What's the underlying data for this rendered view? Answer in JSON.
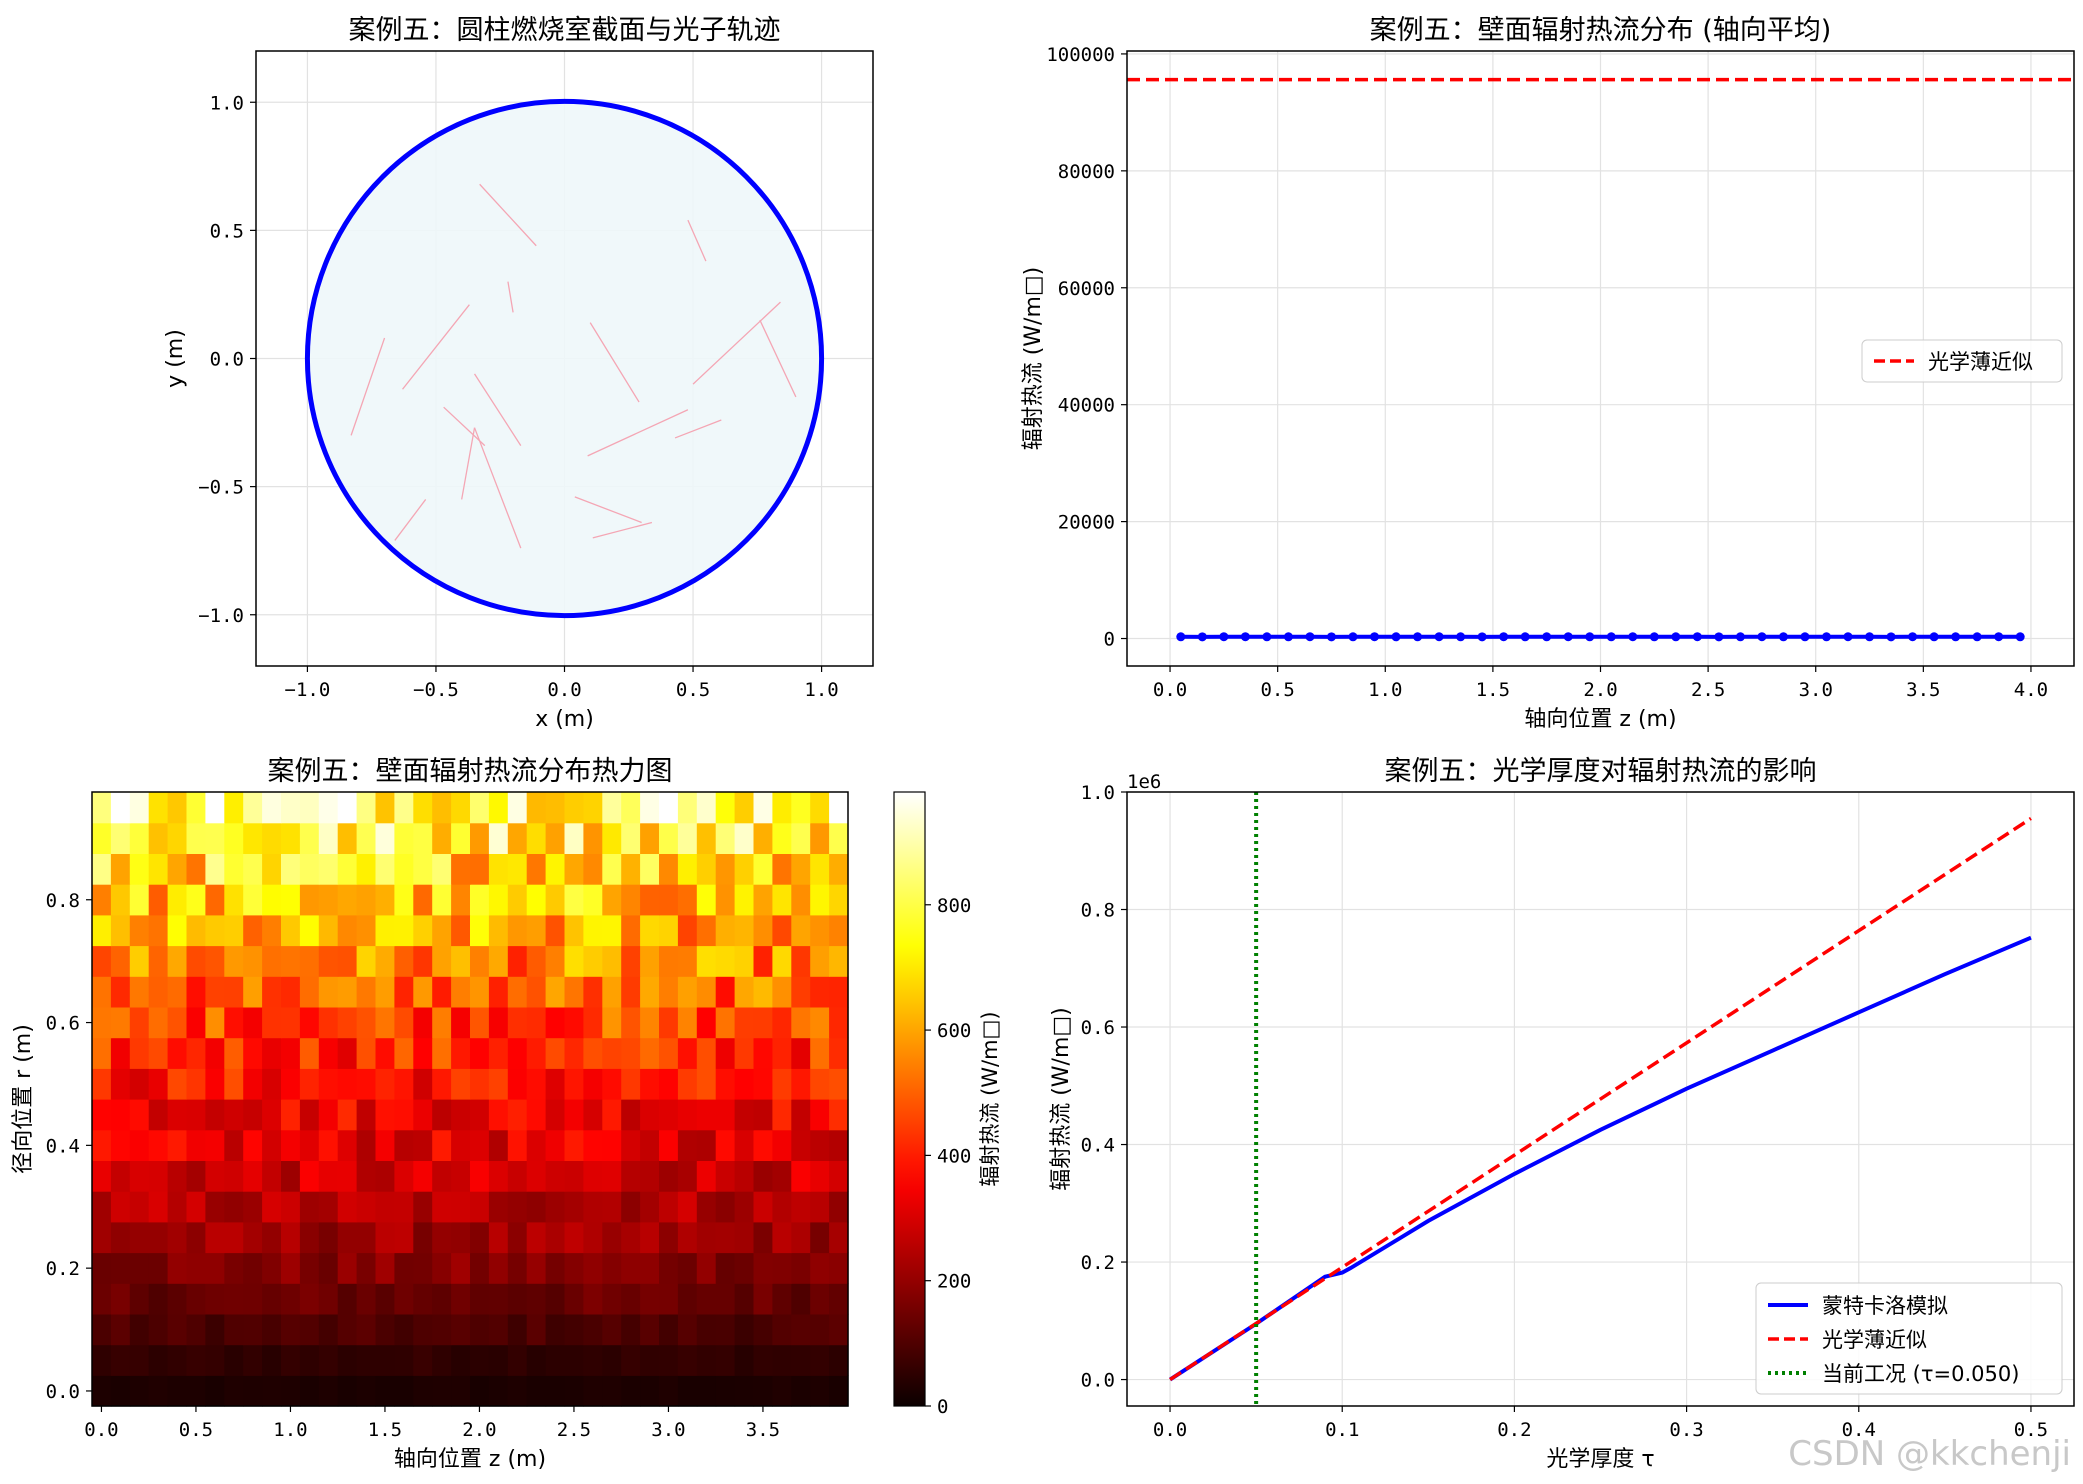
{
  "watermark": "CSDN @kkchenji",
  "chart_data": [
    {
      "type": "scatter",
      "panel": "top-left",
      "title": "案例五：圆柱燃烧室截面与光子轨迹",
      "xlabel": "x (m)",
      "ylabel": "y (m)",
      "xlim": [
        -1.2,
        1.2
      ],
      "ylim": [
        -1.2,
        1.2
      ],
      "xticks": [
        -1.0,
        -0.5,
        0.0,
        0.5,
        1.0
      ],
      "xtick_labels": [
        "−1.0",
        "−0.5",
        "0.0",
        "0.5",
        "1.0"
      ],
      "yticks": [
        -1.0,
        -0.5,
        0.0,
        0.5,
        1.0
      ],
      "ytick_labels": [
        "−1.0",
        "−0.5",
        "0.0",
        "0.5",
        "1.0"
      ],
      "grid": true,
      "circle": {
        "cx": 0,
        "cy": 0,
        "r": 1.0,
        "stroke": "#0000ff",
        "fill": "#eef7fa"
      },
      "trajectory_color": "#f4a6b4",
      "trajectories": [
        [
          [
            -0.33,
            0.68
          ],
          [
            -0.11,
            0.44
          ]
        ],
        [
          [
            0.48,
            0.54
          ],
          [
            0.55,
            0.38
          ]
        ],
        [
          [
            -0.22,
            0.3
          ],
          [
            -0.2,
            0.18
          ]
        ],
        [
          [
            -0.37,
            0.21
          ],
          [
            -0.63,
            -0.12
          ]
        ],
        [
          [
            -0.7,
            0.08
          ],
          [
            -0.83,
            -0.3
          ]
        ],
        [
          [
            0.1,
            0.14
          ],
          [
            0.29,
            -0.17
          ]
        ],
        [
          [
            0.84,
            0.22
          ],
          [
            0.5,
            -0.1
          ]
        ],
        [
          [
            0.76,
            0.15
          ],
          [
            0.9,
            -0.15
          ]
        ],
        [
          [
            -0.35,
            -0.06
          ],
          [
            -0.17,
            -0.34
          ]
        ],
        [
          [
            -0.47,
            -0.19
          ],
          [
            -0.31,
            -0.34
          ]
        ],
        [
          [
            0.48,
            -0.2
          ],
          [
            0.09,
            -0.38
          ]
        ],
        [
          [
            0.61,
            -0.24
          ],
          [
            0.43,
            -0.31
          ]
        ],
        [
          [
            -0.35,
            -0.27
          ],
          [
            -0.4,
            -0.55
          ]
        ],
        [
          [
            -0.35,
            -0.27
          ],
          [
            -0.17,
            -0.74
          ]
        ],
        [
          [
            0.04,
            -0.54
          ],
          [
            0.3,
            -0.64
          ]
        ],
        [
          [
            0.34,
            -0.64
          ],
          [
            0.11,
            -0.7
          ]
        ],
        [
          [
            -0.54,
            -0.55
          ],
          [
            -0.66,
            -0.71
          ]
        ]
      ]
    },
    {
      "type": "line",
      "panel": "top-right",
      "title": "案例五：壁面辐射热流分布 (轴向平均)",
      "xlabel": "轴向位置 z (m)",
      "ylabel": "辐射热流 (W/m□)",
      "xlim": [
        -0.2,
        4.2
      ],
      "ylim": [
        -4700,
        100500
      ],
      "xticks": [
        0.0,
        0.5,
        1.0,
        1.5,
        2.0,
        2.5,
        3.0,
        3.5,
        4.0
      ],
      "xtick_labels": [
        "0.0",
        "0.5",
        "1.0",
        "1.5",
        "2.0",
        "2.5",
        "3.0",
        "3.5",
        "4.0"
      ],
      "yticks": [
        0,
        20000,
        40000,
        60000,
        80000,
        100000
      ],
      "ytick_labels": [
        "0",
        "20000",
        "40000",
        "60000",
        "80000",
        "100000"
      ],
      "grid": true,
      "legend_position": "right",
      "series": [
        {
          "color": "#0000ff",
          "style": "solid-markers",
          "x": [
            0.05,
            0.15,
            0.25,
            0.35,
            0.45,
            0.55,
            0.65,
            0.75,
            0.85,
            0.95,
            1.05,
            1.15,
            1.25,
            1.35,
            1.45,
            1.55,
            1.65,
            1.75,
            1.85,
            1.95,
            2.05,
            2.15,
            2.25,
            2.35,
            2.45,
            2.55,
            2.65,
            2.75,
            2.85,
            2.95,
            3.05,
            3.15,
            3.25,
            3.35,
            3.45,
            3.55,
            3.65,
            3.75,
            3.85,
            3.95
          ],
          "values": [
            300,
            290,
            310,
            305,
            295,
            300,
            310,
            290,
            300,
            305,
            295,
            300,
            310,
            300,
            290,
            305,
            300,
            295,
            310,
            300,
            300,
            305,
            295,
            300,
            310,
            290,
            300,
            305,
            300,
            295,
            300,
            310,
            300,
            290,
            305,
            300,
            300,
            295,
            305,
            300
          ]
        },
        {
          "name": "光学薄近似",
          "color": "#ff0000",
          "style": "dashed",
          "y": 95600
        }
      ]
    },
    {
      "type": "heatmap",
      "panel": "bottom-left",
      "title": "案例五：壁面辐射热流分布热力图",
      "xlabel": "轴向位置 z (m)",
      "ylabel": "径向位置 r (m)",
      "colorbar_label": "辐射热流 (W/m□)",
      "colormap": "hot",
      "x_extent": [
        -0.05,
        3.95
      ],
      "y_extent": [
        -0.0245,
        0.9755
      ],
      "n_cols": 40,
      "n_rows": 20,
      "value_range": [
        0,
        980
      ],
      "xticks": [
        0.0,
        0.5,
        1.0,
        1.5,
        2.0,
        2.5,
        3.0,
        3.5
      ],
      "xtick_labels": [
        "0.0",
        "0.5",
        "1.0",
        "1.5",
        "2.0",
        "2.5",
        "3.0",
        "3.5"
      ],
      "yticks": [
        0.0,
        0.2,
        0.4,
        0.6,
        0.8
      ],
      "ytick_labels": [
        "0.0",
        "0.2",
        "0.4",
        "0.6",
        "0.8"
      ],
      "cbar_ticks": [
        0,
        200,
        400,
        600,
        800
      ],
      "cbar_tick_labels": [
        "0",
        "200",
        "400",
        "600",
        "800"
      ],
      "row_mean_values": [
        25,
        55,
        95,
        135,
        175,
        210,
        245,
        280,
        315,
        345,
        380,
        420,
        460,
        500,
        545,
        590,
        640,
        700,
        770,
        850
      ],
      "cell_variation": 0.2
    },
    {
      "type": "line",
      "panel": "bottom-right",
      "title": "案例五：光学厚度对辐射热流的影响",
      "xlabel": "光学厚度 τ",
      "ylabel": "辐射热流 (W/m□)",
      "offset_label": "1e6",
      "xlim": [
        -0.025,
        0.525
      ],
      "ylim": [
        -0.045,
        1.0
      ],
      "xticks": [
        0.0,
        0.1,
        0.2,
        0.3,
        0.4,
        0.5
      ],
      "xtick_labels": [
        "0.0",
        "0.1",
        "0.2",
        "0.3",
        "0.4",
        "0.5"
      ],
      "yticks": [
        0.0,
        0.2,
        0.4,
        0.6,
        0.8,
        1.0
      ],
      "ytick_labels": [
        "0.0",
        "0.2",
        "0.4",
        "0.6",
        "0.8",
        "1.0"
      ],
      "grid": true,
      "legend_position": "lower-right",
      "series": [
        {
          "name": "蒙特卡洛模拟",
          "color": "#0000ff",
          "style": "solid",
          "x": [
            0.0,
            0.05,
            0.09,
            0.1,
            0.105,
            0.15,
            0.2,
            0.25,
            0.3,
            0.35,
            0.4,
            0.45,
            0.5
          ],
          "values": [
            0.0,
            0.095,
            0.175,
            0.182,
            0.19,
            0.27,
            0.35,
            0.425,
            0.495,
            0.56,
            0.625,
            0.69,
            0.752
          ]
        },
        {
          "name": "光学薄近似",
          "color": "#ff0000",
          "style": "dashed",
          "x": [
            0.0,
            0.5
          ],
          "values": [
            0.0,
            0.955
          ]
        },
        {
          "name": "当前工况 (τ=0.050)",
          "color": "#008000",
          "style": "dotted-vertical",
          "x_value": 0.05
        }
      ]
    }
  ]
}
